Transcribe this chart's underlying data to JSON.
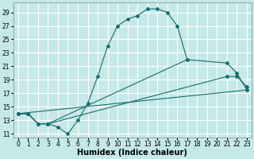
{
  "xlabel": "Humidex (Indice chaleur)",
  "ylabel": "",
  "bg_color": "#c5e8e8",
  "grid_color": "#ffffff",
  "line_color": "#1a6b6b",
  "xlim": [
    -0.5,
    23.5
  ],
  "ylim": [
    10.5,
    30.5
  ],
  "xticks": [
    0,
    1,
    2,
    3,
    4,
    5,
    6,
    7,
    8,
    9,
    10,
    11,
    12,
    13,
    14,
    15,
    16,
    17,
    18,
    19,
    20,
    21,
    22,
    23
  ],
  "yticks": [
    11,
    13,
    15,
    17,
    19,
    21,
    23,
    25,
    27,
    29
  ],
  "series1_x": [
    0,
    1,
    2,
    3,
    4,
    5,
    6,
    7,
    8,
    9,
    10,
    11,
    12,
    13,
    14,
    15,
    16,
    17
  ],
  "series1_y": [
    14,
    14,
    12.5,
    12.5,
    12,
    11,
    13,
    15.5,
    19.5,
    24,
    27,
    28,
    28.5,
    29.5,
    29.5,
    29,
    27,
    22
  ],
  "series2_x": [
    0,
    1,
    2,
    3,
    17,
    21,
    22,
    23
  ],
  "series2_y": [
    14,
    14,
    12.5,
    12.5,
    22,
    21.5,
    20,
    17.5
  ],
  "series3_x": [
    0,
    1,
    2,
    3,
    21,
    22,
    23
  ],
  "series3_y": [
    14,
    14,
    12.5,
    12.5,
    19.5,
    19.5,
    18
  ],
  "series4_x": [
    0,
    23
  ],
  "series4_y": [
    14,
    17.5
  ],
  "title_fontsize": 7,
  "tick_fontsize": 5.5,
  "label_fontsize": 7
}
